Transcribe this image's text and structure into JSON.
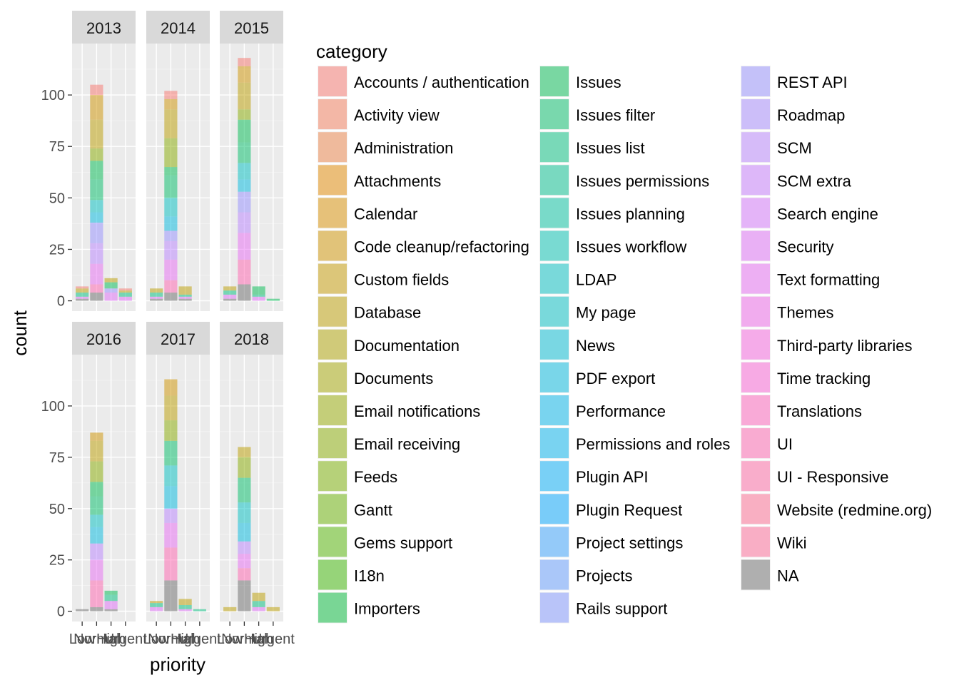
{
  "chart_data": {
    "type": "bar",
    "stacked": true,
    "xlabel": "priority",
    "ylabel": "count",
    "legend_title": "category",
    "legend_position": "right",
    "grid": true,
    "ylim": [
      0,
      125
    ],
    "y_ticks": [
      0,
      25,
      50,
      75,
      100
    ],
    "categories": [
      "Low",
      "Normal",
      "High",
      "Urgent"
    ],
    "bar_alpha": 0.5,
    "category_colors": {
      "Accounts / authentication": "#F8766D",
      "Activity view": "#F47C5A",
      "Administration": "#EC8245",
      "Attachments": "#E38900",
      "Calendar": "#DA8F00",
      "Code cleanup/refactoring": "#D09400",
      "Custom fields": "#C59900",
      "Database": "#BB9D00",
      "Documentation": "#AEA200",
      "Documents": "#A3A500",
      "Email notifications": "#96A900",
      "Email receiving": "#88AC00",
      "Feeds": "#79AF00",
      "Gantt": "#68B200",
      "Gems support": "#52B500",
      "I18n": "#39B600",
      "Importers": "#00BA38",
      "Issues": "#00BC51",
      "Issues filter": "#00BE67",
      "Issues list": "#00BF7D",
      "Issues permissions": "#00C08E",
      "Issues planning": "#00C1A0",
      "Issues workflow": "#00C1B2",
      "LDAP": "#00C0C1",
      "My page": "#00BFC4",
      "News": "#00BCD4",
      "PDF export": "#00BAE0",
      "Performance": "#00B6EB",
      "Permissions and roles": "#00B4F0",
      "Plugin API": "#00ADFA",
      "Plugin Request": "#00A5FF",
      "Project settings": "#35A2FF",
      "Projects": "#619CFF",
      "Rails support": "#7F96FF",
      "REST API": "#9590FF",
      "Roadmap": "#A58AFF",
      "SCM": "#B983FF",
      "SCM extra": "#C77CFF",
      "Search engine": "#D575FE",
      "Security": "#E06EF8",
      "Text formatting": "#E76BF3",
      "Themes": "#F066EA",
      "Third-party libraries": "#F863DF",
      "Time tracking": "#FC61D5",
      "Translations": "#FF62BC",
      "UI": "#FF64B0",
      "UI - Responsive": "#FF67A4",
      "Website (redmine.org)": "#FF6C91",
      "Wiki": "#FF6A98",
      "NA": "#6B6B6B"
    },
    "legend_columns": [
      [
        "Accounts / authentication",
        "Activity view",
        "Administration",
        "Attachments",
        "Calendar",
        "Code cleanup/refactoring",
        "Custom fields",
        "Database",
        "Documentation",
        "Documents",
        "Email notifications",
        "Email receiving",
        "Feeds",
        "Gantt",
        "Gems support",
        "I18n",
        "Importers"
      ],
      [
        "Issues",
        "Issues filter",
        "Issues list",
        "Issues permissions",
        "Issues planning",
        "Issues workflow",
        "LDAP",
        "My page",
        "News",
        "PDF export",
        "Performance",
        "Permissions and roles",
        "Plugin API",
        "Plugin Request",
        "Project settings",
        "Projects",
        "Rails support"
      ],
      [
        "REST API",
        "Roadmap",
        "SCM",
        "SCM extra",
        "Search engine",
        "Security",
        "Text formatting",
        "Themes",
        "Third-party libraries",
        "Time tracking",
        "Translations",
        "UI",
        "UI - Responsive",
        "Website (redmine.org)",
        "Wiki",
        "NA"
      ]
    ],
    "panels": [
      {
        "label": "2013",
        "bars": [
          {
            "x": "Low",
            "segments": [
              [
                "NA",
                1
              ],
              [
                "Security",
                1
              ],
              [
                "Issues list",
                2
              ],
              [
                "Database",
                2
              ],
              [
                "Accounts / authentication",
                1
              ]
            ]
          },
          {
            "x": "Normal",
            "segments": [
              [
                "NA",
                4
              ],
              [
                "UI",
                4
              ],
              [
                "Text formatting",
                10
              ],
              [
                "SCM",
                10
              ],
              [
                "REST API",
                10
              ],
              [
                "PDF export",
                5
              ],
              [
                "LDAP",
                6
              ],
              [
                "Issues filter",
                10
              ],
              [
                "Issues",
                9
              ],
              [
                "Email receiving",
                6
              ],
              [
                "Database",
                14
              ],
              [
                "Code cleanup/refactoring",
                12
              ],
              [
                "Accounts / authentication",
                5
              ]
            ]
          },
          {
            "x": "High",
            "segments": [
              [
                "Security",
                4
              ],
              [
                "REST API",
                2
              ],
              [
                "Issues",
                3
              ],
              [
                "Database",
                2
              ]
            ]
          },
          {
            "x": "Urgent",
            "segments": [
              [
                "Security",
                2
              ],
              [
                "Issues list",
                2
              ],
              [
                "Database",
                1
              ],
              [
                "Accounts / authentication",
                1
              ]
            ]
          }
        ]
      },
      {
        "label": "2014",
        "bars": [
          {
            "x": "Low",
            "segments": [
              [
                "NA",
                1
              ],
              [
                "Security",
                1
              ],
              [
                "Issues list",
                2
              ],
              [
                "Database",
                2
              ]
            ]
          },
          {
            "x": "Normal",
            "segments": [
              [
                "NA",
                4
              ],
              [
                "UI",
                6
              ],
              [
                "Text formatting",
                10
              ],
              [
                "SCM",
                9
              ],
              [
                "REST API",
                5
              ],
              [
                "PDF export",
                7
              ],
              [
                "LDAP",
                9
              ],
              [
                "Issues filter",
                11
              ],
              [
                "Issues",
                4
              ],
              [
                "Email receiving",
                14
              ],
              [
                "Database",
                14
              ],
              [
                "Code cleanup/refactoring",
                5
              ],
              [
                "Accounts / authentication",
                4
              ]
            ]
          },
          {
            "x": "High",
            "segments": [
              [
                "NA",
                1
              ],
              [
                "Security",
                1
              ],
              [
                "Issues list",
                1
              ],
              [
                "Database",
                4
              ]
            ]
          },
          {
            "x": "Urgent",
            "segments": []
          }
        ]
      },
      {
        "label": "2015",
        "bars": [
          {
            "x": "Low",
            "segments": [
              [
                "NA",
                1
              ],
              [
                "Security",
                2
              ],
              [
                "Issues list",
                2
              ],
              [
                "Database",
                2
              ]
            ]
          },
          {
            "x": "Normal",
            "segments": [
              [
                "NA",
                8
              ],
              [
                "UI",
                12
              ],
              [
                "Text formatting",
                13
              ],
              [
                "SCM",
                10
              ],
              [
                "REST API",
                10
              ],
              [
                "PDF export",
                6
              ],
              [
                "LDAP",
                8
              ],
              [
                "Issues filter",
                10
              ],
              [
                "Issues",
                11
              ],
              [
                "Email receiving",
                5
              ],
              [
                "Database",
                13
              ],
              [
                "Code cleanup/refactoring",
                8
              ],
              [
                "Accounts / authentication",
                4
              ]
            ]
          },
          {
            "x": "High",
            "segments": [
              [
                "Security",
                2
              ],
              [
                "Issues list",
                1
              ],
              [
                "Issues",
                4
              ]
            ]
          },
          {
            "x": "Urgent",
            "segments": [
              [
                "Issues",
                1
              ]
            ]
          }
        ]
      },
      {
        "label": "2016",
        "bars": [
          {
            "x": "Low",
            "segments": [
              [
                "NA",
                1
              ]
            ]
          },
          {
            "x": "Normal",
            "segments": [
              [
                "NA",
                2
              ],
              [
                "UI",
                13
              ],
              [
                "Text formatting",
                10
              ],
              [
                "SCM",
                8
              ],
              [
                "PDF export",
                8
              ],
              [
                "LDAP",
                6
              ],
              [
                "Issues filter",
                9
              ],
              [
                "Issues",
                7
              ],
              [
                "Email receiving",
                10
              ],
              [
                "Database",
                10
              ],
              [
                "Code cleanup/refactoring",
                4
              ]
            ]
          },
          {
            "x": "High",
            "segments": [
              [
                "NA",
                1
              ],
              [
                "Security",
                4
              ],
              [
                "Issues list",
                3
              ],
              [
                "Issues",
                2
              ]
            ]
          },
          {
            "x": "Urgent",
            "segments": []
          }
        ]
      },
      {
        "label": "2017",
        "bars": [
          {
            "x": "Low",
            "segments": [
              [
                "Security",
                2
              ],
              [
                "Issues list",
                2
              ],
              [
                "Database",
                1
              ]
            ]
          },
          {
            "x": "Normal",
            "segments": [
              [
                "NA",
                15
              ],
              [
                "UI",
                16
              ],
              [
                "Text formatting",
                12
              ],
              [
                "SCM",
                7
              ],
              [
                "PDF export",
                11
              ],
              [
                "LDAP",
                10
              ],
              [
                "Issues filter",
                12
              ],
              [
                "Email receiving",
                10
              ],
              [
                "Database",
                12
              ],
              [
                "Code cleanup/refactoring",
                8
              ]
            ]
          },
          {
            "x": "High",
            "segments": [
              [
                "Security",
                1
              ],
              [
                "Issues list",
                2
              ],
              [
                "Database",
                3
              ]
            ]
          },
          {
            "x": "Urgent",
            "segments": [
              [
                "Issues list",
                1
              ]
            ]
          }
        ]
      },
      {
        "label": "2018",
        "bars": [
          {
            "x": "Low",
            "segments": [
              [
                "Database",
                2
              ]
            ]
          },
          {
            "x": "Normal",
            "segments": [
              [
                "NA",
                15
              ],
              [
                "UI",
                6
              ],
              [
                "Text formatting",
                7
              ],
              [
                "SCM",
                6
              ],
              [
                "PDF export",
                9
              ],
              [
                "LDAP",
                10
              ],
              [
                "Issues filter",
                12
              ],
              [
                "Email receiving",
                10
              ],
              [
                "Database",
                5
              ]
            ]
          },
          {
            "x": "High",
            "segments": [
              [
                "Security",
                2
              ],
              [
                "Issues list",
                3
              ],
              [
                "Database",
                4
              ]
            ]
          },
          {
            "x": "Urgent",
            "segments": [
              [
                "Database",
                2
              ]
            ]
          }
        ]
      }
    ]
  }
}
